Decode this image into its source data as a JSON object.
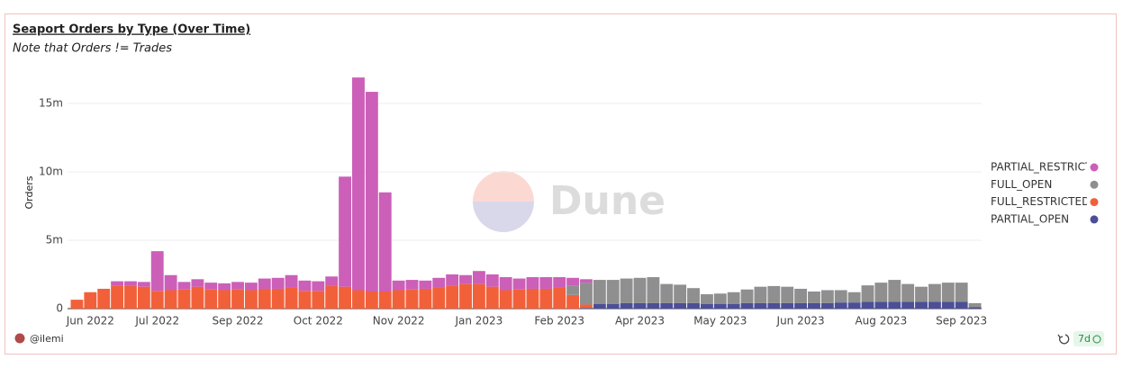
{
  "chart_data": {
    "type": "stacked_bar",
    "title": "Seaport Orders by Type (Over Time)",
    "subtitle": "Note that Orders != Trades",
    "y_label": "Orders",
    "watermark": "Dune",
    "categories": [
      null,
      "Jun 2022",
      null,
      null,
      null,
      null,
      "Jul 2022",
      null,
      null,
      null,
      null,
      null,
      "Sep 2022",
      null,
      null,
      null,
      null,
      null,
      "Oct 2022",
      null,
      null,
      null,
      null,
      null,
      "Nov 2022",
      null,
      null,
      null,
      null,
      null,
      "Jan 2023",
      null,
      null,
      null,
      null,
      null,
      "Feb 2023",
      null,
      null,
      null,
      null,
      null,
      "Apr 2023",
      null,
      null,
      null,
      null,
      null,
      "May 2023",
      null,
      null,
      null,
      null,
      null,
      "Jun 2023",
      null,
      null,
      null,
      null,
      null,
      "Aug 2023",
      null,
      null,
      null,
      null,
      null,
      "Sep 2023",
      null
    ],
    "series": [
      {
        "name": "PARTIAL_RESTRICTED",
        "color": "#cc5fb8",
        "values": [
          0,
          0,
          0,
          300000,
          350000,
          350000,
          2900000,
          1100000,
          550000,
          550000,
          500000,
          500000,
          550000,
          550000,
          750000,
          800000,
          900000,
          750000,
          700000,
          700000,
          8050000,
          15550000,
          14600000,
          7250000,
          700000,
          700000,
          600000,
          700000,
          800000,
          650000,
          950000,
          900000,
          950000,
          800000,
          850000,
          850000,
          750000,
          550000,
          250000,
          0,
          0,
          0,
          0,
          0,
          0,
          0,
          0,
          0,
          0,
          0,
          0,
          0,
          0,
          0,
          0,
          0,
          0,
          0,
          0,
          0,
          0,
          0,
          0,
          0,
          0,
          0,
          0,
          0
        ]
      },
      {
        "name": "FULL_OPEN",
        "color": "#8f8f8f",
        "values": [
          0,
          0,
          0,
          0,
          0,
          0,
          0,
          0,
          0,
          0,
          0,
          0,
          0,
          0,
          0,
          0,
          0,
          0,
          0,
          0,
          0,
          0,
          0,
          0,
          0,
          0,
          0,
          0,
          0,
          0,
          0,
          0,
          0,
          0,
          0,
          0,
          0,
          700000,
          1600000,
          1750000,
          1750000,
          1800000,
          1850000,
          1900000,
          1400000,
          1350000,
          1100000,
          700000,
          750000,
          850000,
          1000000,
          1200000,
          1250000,
          1200000,
          1050000,
          850000,
          950000,
          900000,
          750000,
          1200000,
          1400000,
          1600000,
          1300000,
          1100000,
          1300000,
          1400000,
          1400000,
          300000
        ]
      },
      {
        "name": "FULL_RESTRICTED",
        "color": "#f2603a",
        "values": [
          650000,
          1200000,
          1450000,
          1700000,
          1650000,
          1600000,
          1300000,
          1350000,
          1400000,
          1600000,
          1400000,
          1350000,
          1400000,
          1350000,
          1450000,
          1450000,
          1550000,
          1300000,
          1300000,
          1650000,
          1600000,
          1350000,
          1250000,
          1250000,
          1350000,
          1400000,
          1450000,
          1550000,
          1700000,
          1800000,
          1800000,
          1600000,
          1350000,
          1400000,
          1450000,
          1450000,
          1550000,
          1000000,
          250000,
          0,
          0,
          0,
          0,
          0,
          0,
          0,
          0,
          0,
          0,
          0,
          0,
          0,
          0,
          0,
          0,
          0,
          0,
          0,
          0,
          0,
          0,
          0,
          0,
          0,
          0,
          0,
          0,
          0
        ]
      },
      {
        "name": "PARTIAL_OPEN",
        "color": "#4c4f98",
        "values": [
          0,
          0,
          0,
          0,
          0,
          0,
          0,
          0,
          0,
          0,
          0,
          0,
          0,
          0,
          0,
          0,
          0,
          0,
          0,
          0,
          0,
          0,
          0,
          0,
          0,
          0,
          0,
          0,
          0,
          0,
          0,
          0,
          0,
          0,
          0,
          0,
          0,
          0,
          50000,
          350000,
          350000,
          400000,
          400000,
          400000,
          400000,
          400000,
          400000,
          350000,
          350000,
          350000,
          400000,
          400000,
          400000,
          400000,
          400000,
          400000,
          400000,
          450000,
          450000,
          500000,
          500000,
          500000,
          500000,
          500000,
          500000,
          500000,
          500000,
          100000
        ]
      }
    ],
    "ylim": [
      0,
      17500000
    ],
    "yticks": [
      0,
      {
        "value": 5000000,
        "label": "5m"
      },
      {
        "value": 10000000,
        "label": "10m"
      },
      {
        "value": 15000000,
        "label": "15m"
      }
    ],
    "grid": true,
    "legend": "right"
  },
  "footer": {
    "author": "@ilemi",
    "refresh": "7d"
  }
}
